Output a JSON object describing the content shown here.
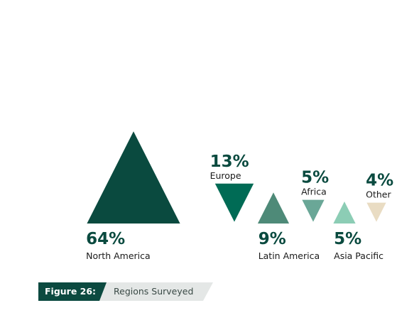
{
  "caption": {
    "figure_label": "Figure 26:",
    "title": "Regions Surveyed"
  },
  "chart_data": {
    "type": "triangle-bar",
    "categories": [
      "North America",
      "Europe",
      "Latin America",
      "Africa",
      "Asia Pacific",
      "Other"
    ],
    "values": [
      64,
      13,
      9,
      5,
      5,
      4
    ],
    "value_labels": [
      "64%",
      "13%",
      "9%",
      "5%",
      "5%",
      "4%"
    ],
    "orientation": [
      "up",
      "down",
      "up",
      "down",
      "up",
      "down"
    ],
    "colors": [
      "#0a4a3f",
      "#006b55",
      "#4e8a78",
      "#6aa797",
      "#8ccdb5",
      "#e9dcc3"
    ]
  }
}
